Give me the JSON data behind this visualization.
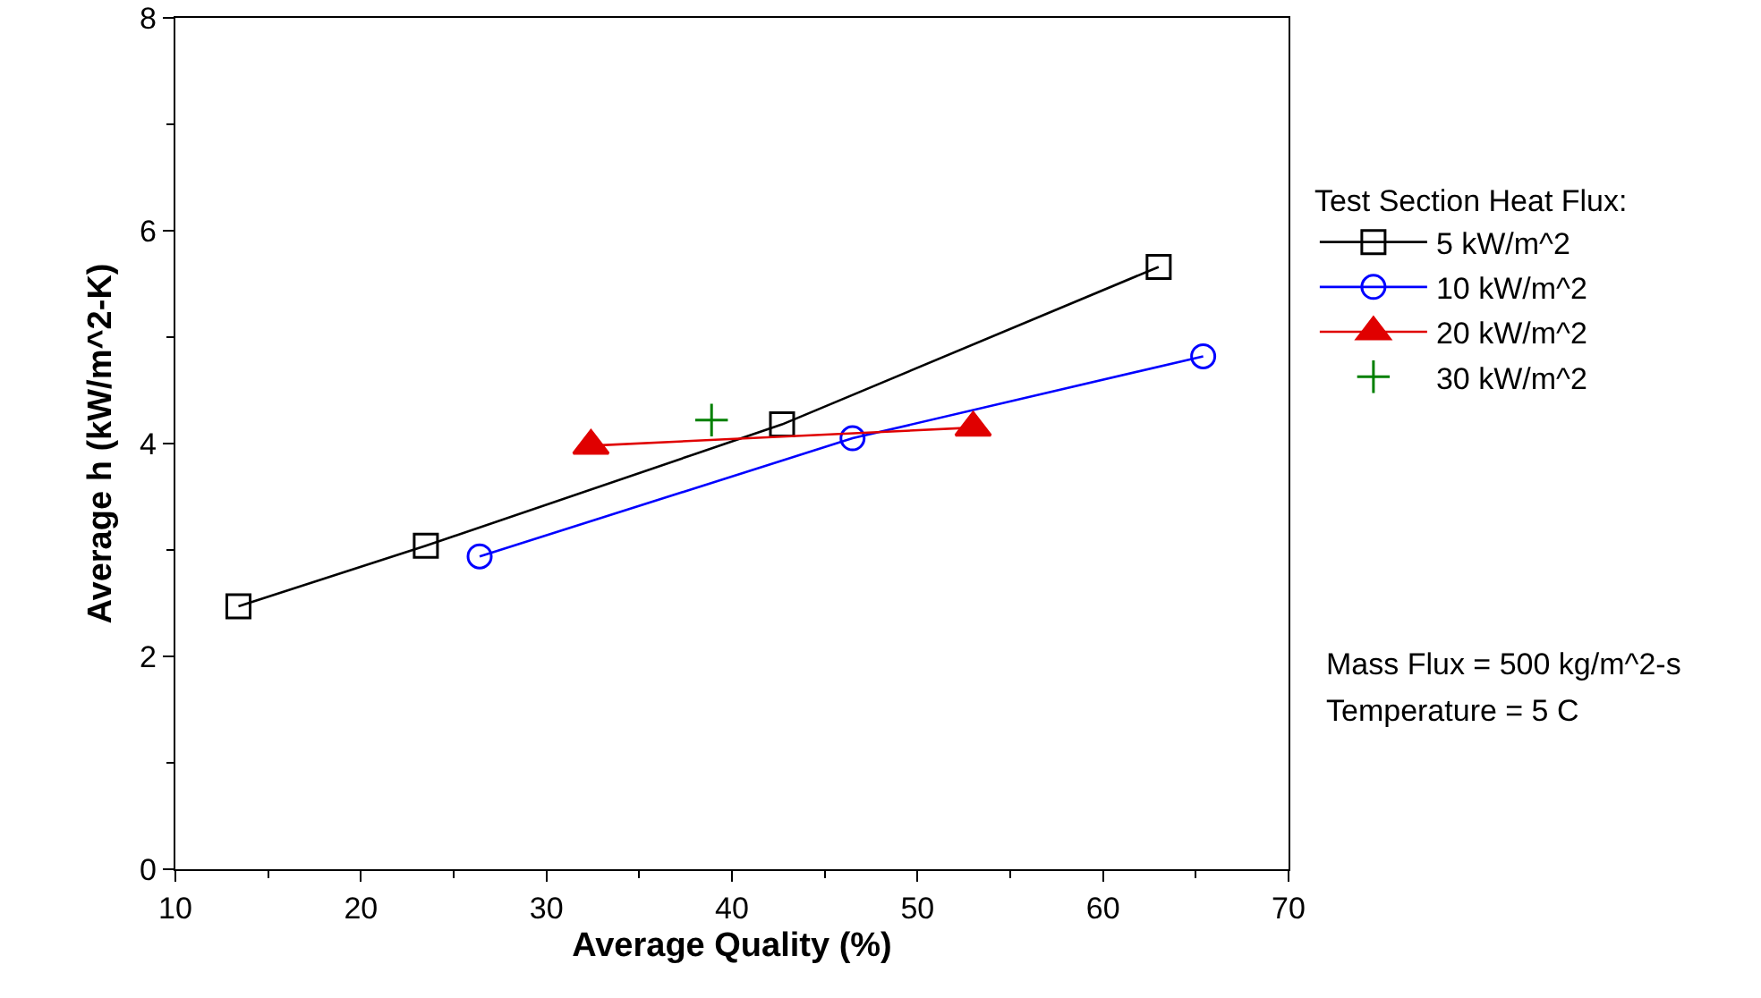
{
  "chart_data": {
    "type": "line",
    "xlabel": "Average Quality (%)",
    "ylabel": "Average h (kW/m^2-K)",
    "legend_title": "Test Section Heat Flux:",
    "legend": "right",
    "xlim": [
      10,
      70
    ],
    "xticks": [
      10,
      20,
      30,
      40,
      50,
      60,
      70
    ],
    "ylim": [
      0,
      8
    ],
    "yticks": [
      0,
      2,
      4,
      6,
      8
    ],
    "grid": false,
    "series": [
      {
        "name": "5 kW/m^2",
        "color": "#000000",
        "marker": "square",
        "x": [
          13.4,
          23.5,
          42.7,
          63.0
        ],
        "values": [
          2.47,
          3.04,
          4.18,
          5.66
        ]
      },
      {
        "name": "10 kW/m^2",
        "color": "#0000ff",
        "marker": "circle",
        "x": [
          26.4,
          46.5,
          65.4
        ],
        "values": [
          2.94,
          4.05,
          4.82
        ]
      },
      {
        "name": "20 kW/m^2",
        "color": "#e00000",
        "marker": "triangle",
        "x": [
          32.4,
          53.0
        ],
        "values": [
          3.98,
          4.15
        ]
      },
      {
        "name": "30 kW/m^2",
        "color": "#008000",
        "marker": "cross",
        "type": "scatter",
        "x": [
          38.9
        ],
        "values": [
          4.22
        ]
      }
    ],
    "annotations": [
      "Mass Flux = 500 kg/m^2-s",
      "Temperature = 5 C"
    ]
  }
}
